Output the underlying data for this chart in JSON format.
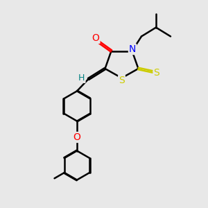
{
  "background_color": "#e8e8e8",
  "line_color": "#000000",
  "bond_width": 1.8,
  "atom_colors": {
    "O": "#ff0000",
    "N": "#0000ff",
    "S": "#cccc00",
    "H": "#008080",
    "C": "#000000"
  },
  "font_size": 9,
  "figsize": [
    3.0,
    3.0
  ],
  "dpi": 100
}
